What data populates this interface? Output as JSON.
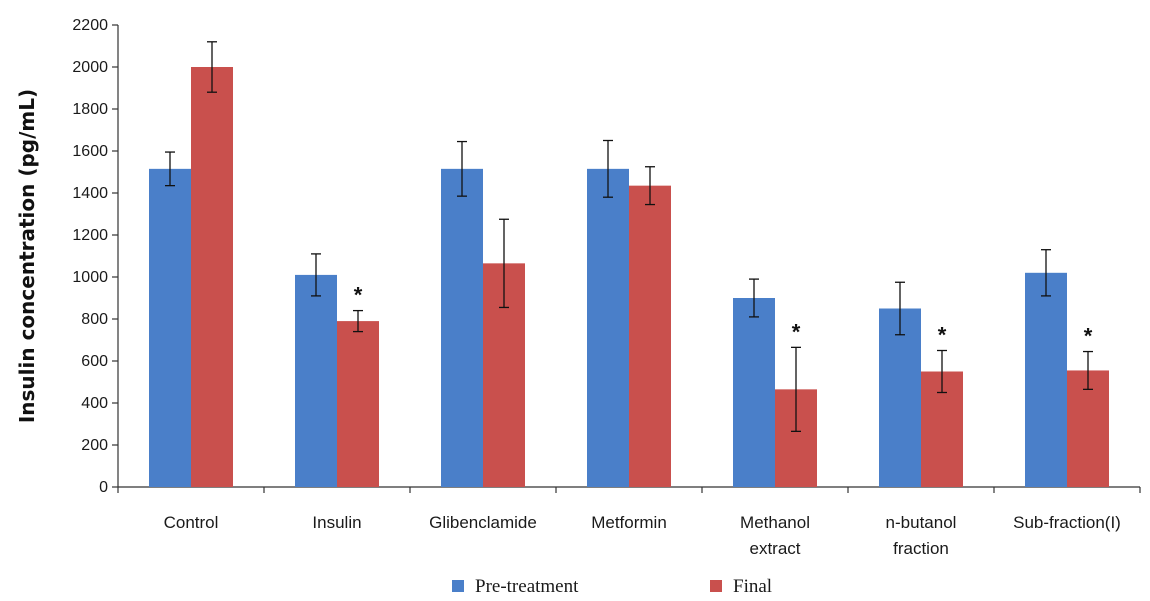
{
  "chart_data": {
    "type": "bar",
    "title": "",
    "xlabel": "",
    "ylabel": "Insulin concentration (pg/mL)",
    "ylim": [
      0,
      2200
    ],
    "yticks": [
      0,
      200,
      400,
      600,
      800,
      1000,
      1200,
      1400,
      1600,
      1800,
      2000,
      2200
    ],
    "grid": false,
    "legend_position": "bottom",
    "categories": [
      [
        "Control"
      ],
      [
        "Insulin"
      ],
      [
        "Glibenclamide"
      ],
      [
        "Metformin"
      ],
      [
        "Methanol",
        "extract"
      ],
      [
        "n-butanol",
        "fraction"
      ],
      [
        "Sub-fraction(I)"
      ]
    ],
    "series": [
      {
        "name": "Pre-treatment",
        "color": "#4a7fc9",
        "values": [
          1515,
          1010,
          1515,
          1515,
          900,
          850,
          1020
        ],
        "errors": [
          80,
          100,
          130,
          135,
          90,
          125,
          110
        ]
      },
      {
        "name": "Final",
        "color": "#c9504d",
        "values": [
          2000,
          790,
          1065,
          1435,
          465,
          550,
          555
        ],
        "errors": [
          120,
          50,
          210,
          90,
          200,
          100,
          90
        ]
      }
    ],
    "annotations": [
      {
        "category_index": 1,
        "series": "Final",
        "text": "*"
      },
      {
        "category_index": 4,
        "series": "Final",
        "text": "*"
      },
      {
        "category_index": 5,
        "series": "Final",
        "text": "*"
      },
      {
        "category_index": 6,
        "series": "Final",
        "text": "*"
      }
    ]
  }
}
